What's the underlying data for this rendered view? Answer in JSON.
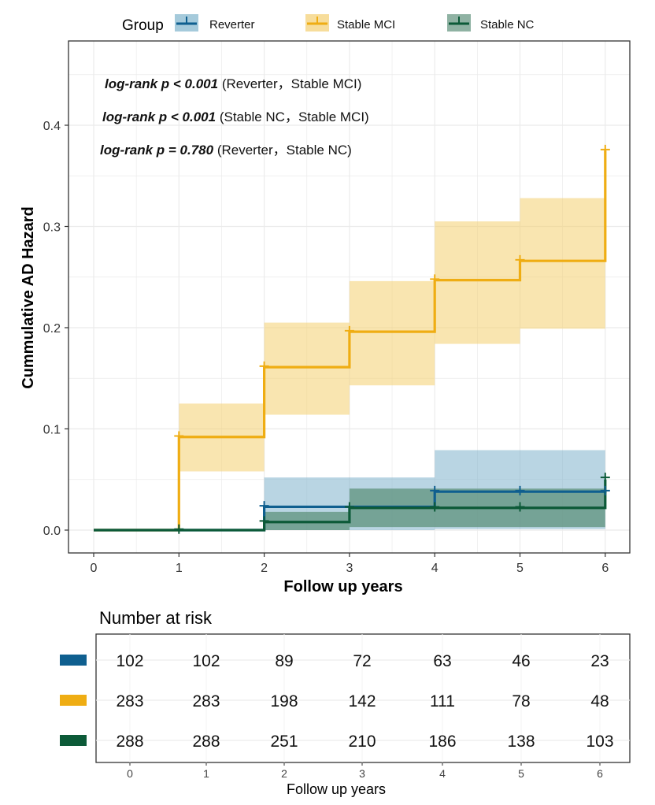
{
  "chart_data": [
    {
      "type": "line",
      "subtype": "step-cumulative-hazard",
      "title": "",
      "xlabel": "Follow up years",
      "ylabel": "Cummulative AD Hazard",
      "xlim": [
        -0.3,
        6.3
      ],
      "ylim": [
        -0.022,
        0.47
      ],
      "x_ticks": [
        0,
        1,
        2,
        3,
        4,
        5,
        6
      ],
      "y_ticks": [
        0.0,
        0.1,
        0.2,
        0.3,
        0.4
      ],
      "y_tick_labels": [
        "0.0",
        "0.1",
        "0.2",
        "0.3",
        "0.4"
      ],
      "grid": true,
      "legend": {
        "title": "Group",
        "position": "top",
        "entries": [
          "Reverter",
          "Stable MCI",
          "Stable NC"
        ]
      },
      "annotations": [
        {
          "italic": "log-rank p < 0.001",
          "text": "(Reverter，Stable MCI)"
        },
        {
          "italic": "log-rank p < 0.001",
          "text": "(Stable NC，Stable MCI)"
        },
        {
          "italic": "log-rank p = 0.780",
          "text": "(Reverter，Stable NC)"
        }
      ],
      "series": [
        {
          "name": "Reverter",
          "color": "#0f5f8f",
          "ci_color": "#7fb3cc",
          "steps": [
            [
              0,
              0.0
            ],
            [
              2,
              0.023
            ],
            [
              4,
              0.038
            ],
            [
              6,
              0.039
            ]
          ],
          "ci": [
            [
              0,
              0.0,
              0.0
            ],
            [
              2,
              0.0,
              0.052
            ],
            [
              4,
              0.001,
              0.079
            ],
            [
              6,
              0.001,
              0.079
            ]
          ],
          "censor": [
            [
              2,
              0.024
            ],
            [
              4,
              0.039
            ],
            [
              5,
              0.039
            ],
            [
              6,
              0.039
            ]
          ]
        },
        {
          "name": "Stable MCI",
          "color": "#efad13",
          "ci_color": "#f4cf70",
          "steps": [
            [
              0,
              0.0
            ],
            [
              1,
              0.092
            ],
            [
              2,
              0.161
            ],
            [
              3,
              0.196
            ],
            [
              4,
              0.247
            ],
            [
              5,
              0.266
            ],
            [
              6,
              0.375
            ]
          ],
          "ci": [
            [
              1,
              0.058,
              0.125
            ],
            [
              2,
              0.114,
              0.205
            ],
            [
              3,
              0.143,
              0.246
            ],
            [
              4,
              0.184,
              0.305
            ],
            [
              5,
              0.199,
              0.328
            ]
          ],
          "censor": [
            [
              1,
              0.093
            ],
            [
              2,
              0.162
            ],
            [
              3,
              0.197
            ],
            [
              4,
              0.248
            ],
            [
              5,
              0.267
            ],
            [
              6,
              0.376
            ]
          ]
        },
        {
          "name": "Stable NC",
          "color": "#0c5a38",
          "ci_color": "#5f927c",
          "steps": [
            [
              0,
              0.0
            ],
            [
              2,
              0.008
            ],
            [
              3,
              0.022
            ],
            [
              6,
              0.022
            ],
            [
              6,
              0.05
            ]
          ],
          "ci": [
            [
              2,
              0.0,
              0.018
            ],
            [
              3,
              0.003,
              0.041
            ],
            [
              6,
              0.003,
              0.041
            ]
          ],
          "censor": [
            [
              1,
              0.001
            ],
            [
              2,
              0.009
            ],
            [
              3,
              0.023
            ],
            [
              4,
              0.023
            ],
            [
              5,
              0.023
            ],
            [
              6,
              0.052
            ]
          ]
        }
      ]
    },
    {
      "type": "table",
      "title": "Number at risk",
      "xlabel": "Follow up years",
      "columns": [
        0,
        1,
        2,
        3,
        4,
        5,
        6
      ],
      "rows": [
        {
          "color": "#0f5f8f",
          "values": [
            102,
            102,
            89,
            72,
            63,
            46,
            23
          ]
        },
        {
          "color": "#efad13",
          "values": [
            283,
            283,
            198,
            142,
            111,
            78,
            48
          ]
        },
        {
          "color": "#0c5a38",
          "values": [
            288,
            288,
            251,
            210,
            186,
            138,
            103
          ]
        }
      ]
    }
  ]
}
